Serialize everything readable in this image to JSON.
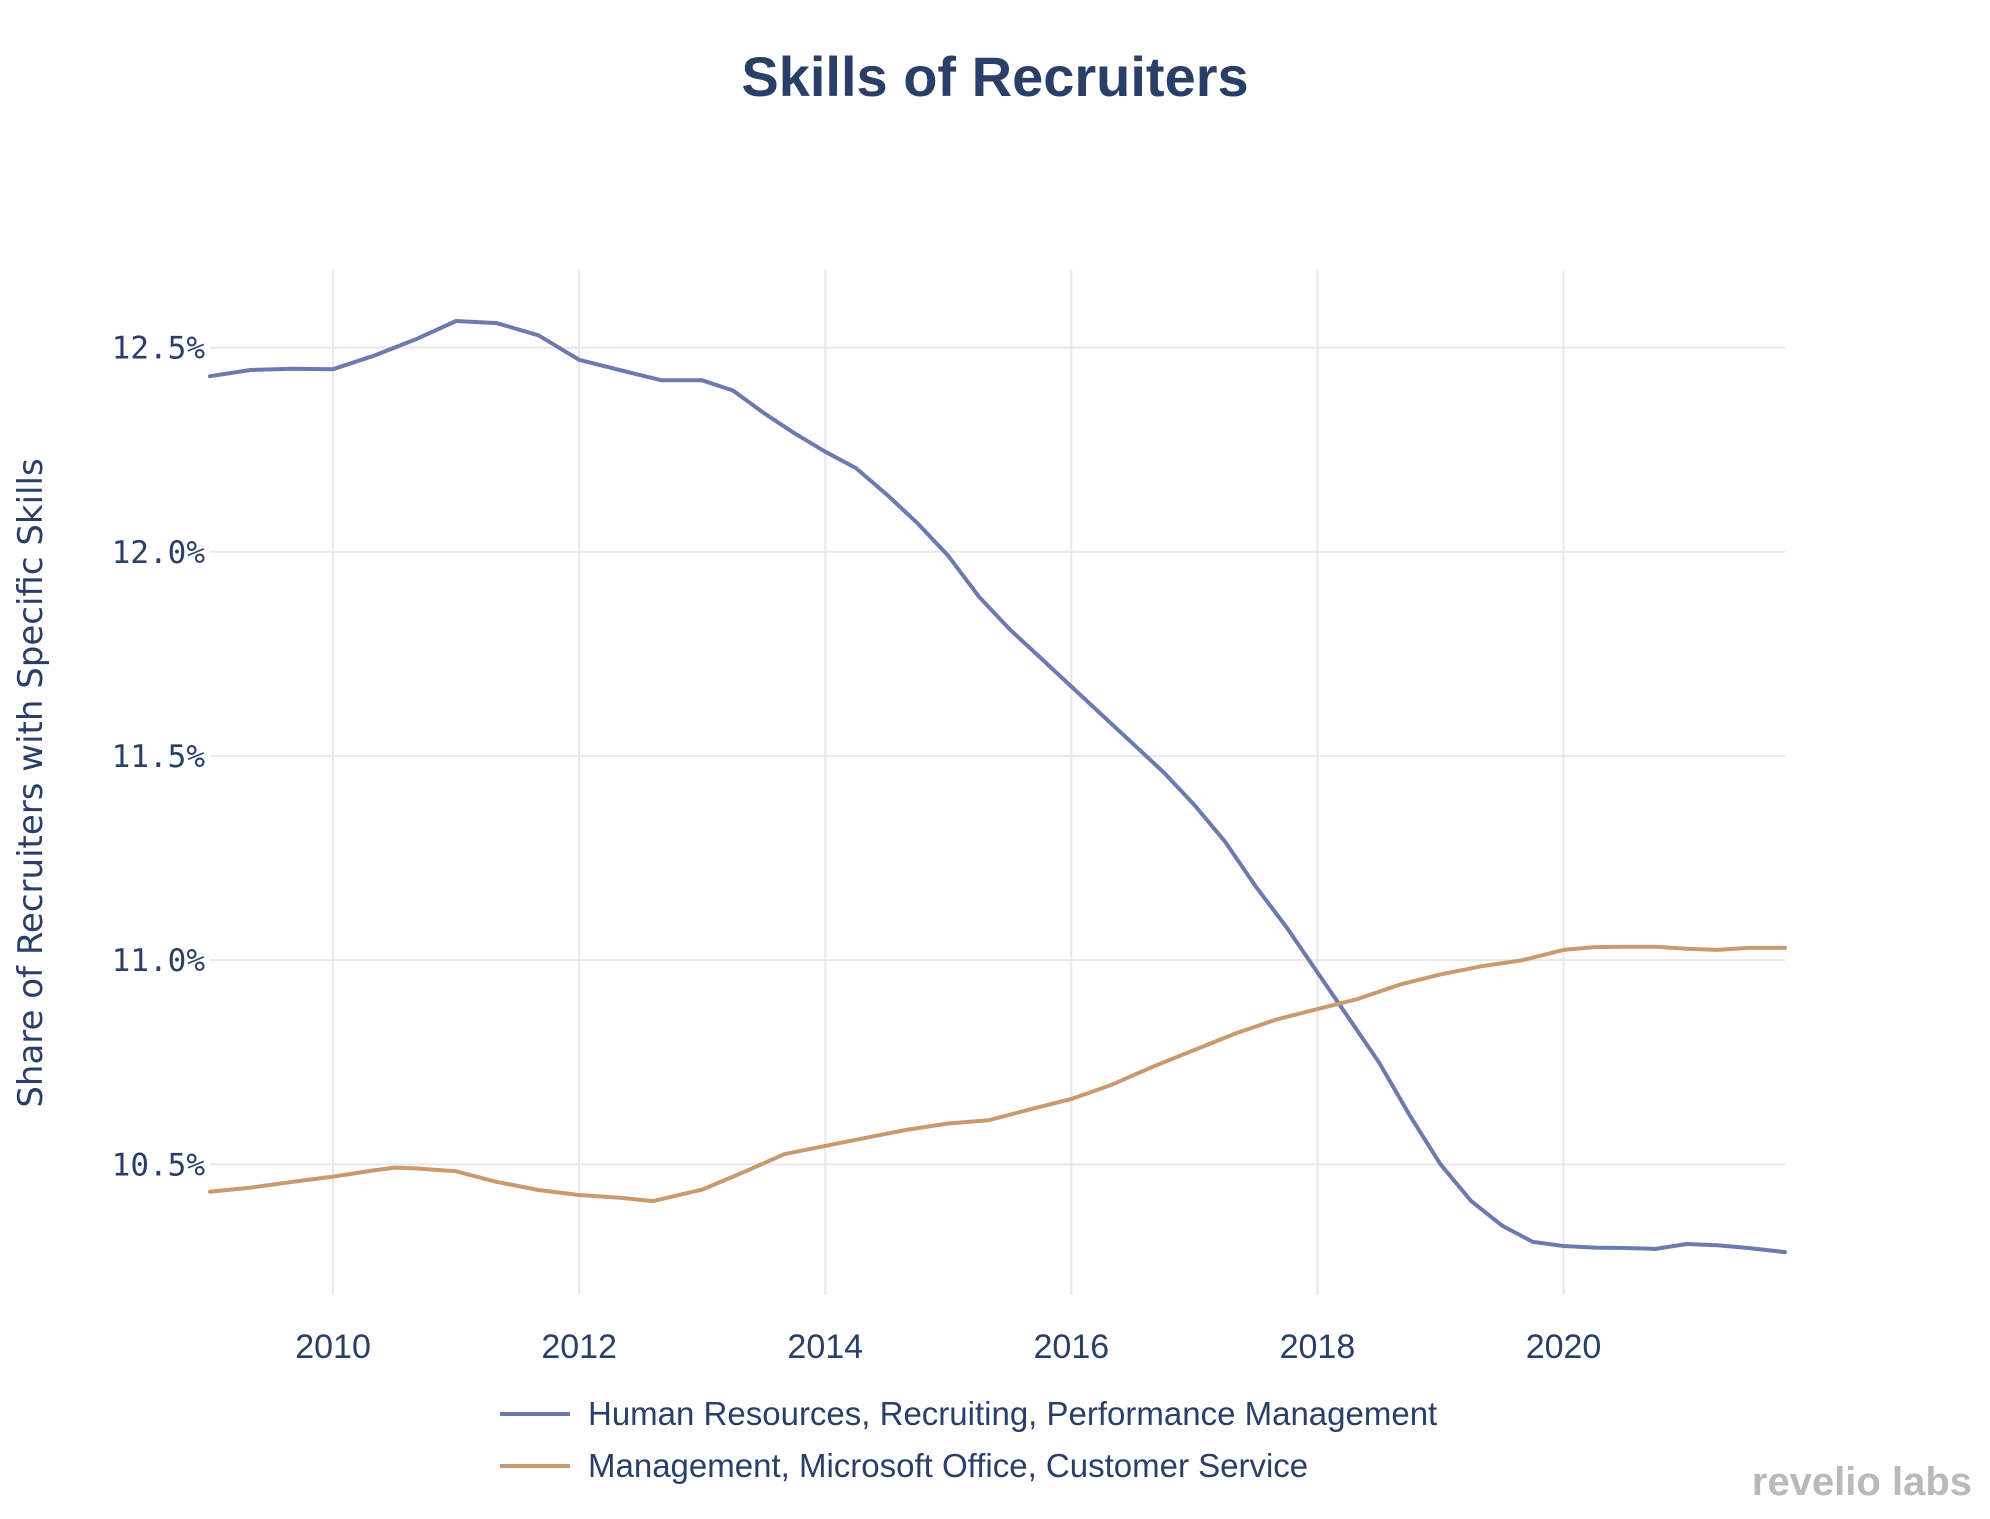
{
  "chart_data": {
    "type": "line",
    "title": "Skills of Recruiters",
    "xlabel": "",
    "ylabel": "Share of Recruiters with Specific Skills",
    "xlim": [
      2009.0,
      2021.8
    ],
    "ylim": [
      10.18,
      12.69
    ],
    "x_ticks": [
      2010,
      2012,
      2014,
      2016,
      2018,
      2020
    ],
    "x_tick_labels": [
      "2010",
      "2012",
      "2014",
      "2016",
      "2018",
      "2020"
    ],
    "y_ticks": [
      10.5,
      11.0,
      11.5,
      12.0,
      12.5
    ],
    "y_tick_labels": [
      "10.5%",
      "11.0%",
      "11.5%",
      "12.0%",
      "12.5%"
    ],
    "grid": true,
    "legend_position": "bottom",
    "series": [
      {
        "name": "Human Resources, Recruiting, Performance Management",
        "color": "#6b7bb0",
        "x": [
          2009.0,
          2009.33,
          2009.67,
          2010.0,
          2010.33,
          2010.67,
          2011.0,
          2011.33,
          2011.67,
          2012.0,
          2012.33,
          2012.67,
          2013.0,
          2013.25,
          2013.5,
          2013.75,
          2014.0,
          2014.25,
          2014.5,
          2014.75,
          2015.0,
          2015.25,
          2015.5,
          2015.75,
          2016.0,
          2016.25,
          2016.5,
          2016.75,
          2017.0,
          2017.25,
          2017.5,
          2017.75,
          2018.0,
          2018.25,
          2018.5,
          2018.75,
          2019.0,
          2019.25,
          2019.5,
          2019.75,
          2020.0,
          2020.25,
          2020.5,
          2020.75,
          2021.0,
          2021.25,
          2021.5,
          2021.8
        ],
        "values": [
          12.43,
          12.445,
          12.448,
          12.447,
          12.48,
          12.52,
          12.565,
          12.56,
          12.53,
          12.47,
          12.445,
          12.42,
          12.42,
          12.395,
          12.34,
          12.29,
          12.245,
          12.205,
          12.14,
          12.07,
          11.99,
          11.89,
          11.81,
          11.74,
          11.67,
          11.6,
          11.53,
          11.46,
          11.38,
          11.29,
          11.18,
          11.08,
          10.97,
          10.86,
          10.75,
          10.62,
          10.5,
          10.41,
          10.35,
          10.31,
          10.3,
          10.296,
          10.295,
          10.293,
          10.305,
          10.302,
          10.295,
          10.285
        ]
      },
      {
        "name": "Management, Microsoft Office, Customer Service",
        "color": "#c99a6e",
        "x": [
          2009.0,
          2009.33,
          2009.67,
          2010.0,
          2010.33,
          2010.5,
          2010.67,
          2011.0,
          2011.33,
          2011.67,
          2012.0,
          2012.33,
          2012.6,
          2013.0,
          2013.33,
          2013.67,
          2014.0,
          2014.33,
          2014.67,
          2015.0,
          2015.33,
          2015.67,
          2016.0,
          2016.33,
          2016.67,
          2017.0,
          2017.33,
          2017.67,
          2018.0,
          2018.33,
          2018.67,
          2019.0,
          2019.33,
          2019.67,
          2020.0,
          2020.25,
          2020.5,
          2020.75,
          2021.0,
          2021.25,
          2021.5,
          2021.8
        ],
        "values": [
          10.433,
          10.443,
          10.457,
          10.47,
          10.485,
          10.492,
          10.49,
          10.483,
          10.457,
          10.437,
          10.425,
          10.418,
          10.41,
          10.438,
          10.48,
          10.525,
          10.545,
          10.565,
          10.585,
          10.6,
          10.608,
          10.635,
          10.66,
          10.695,
          10.74,
          10.78,
          10.82,
          10.855,
          10.88,
          10.905,
          10.94,
          10.965,
          10.985,
          11.0,
          11.025,
          11.032,
          11.033,
          11.033,
          11.028,
          11.025,
          11.03,
          11.03
        ]
      }
    ]
  },
  "branding": {
    "logo_text": "revelio labs"
  }
}
